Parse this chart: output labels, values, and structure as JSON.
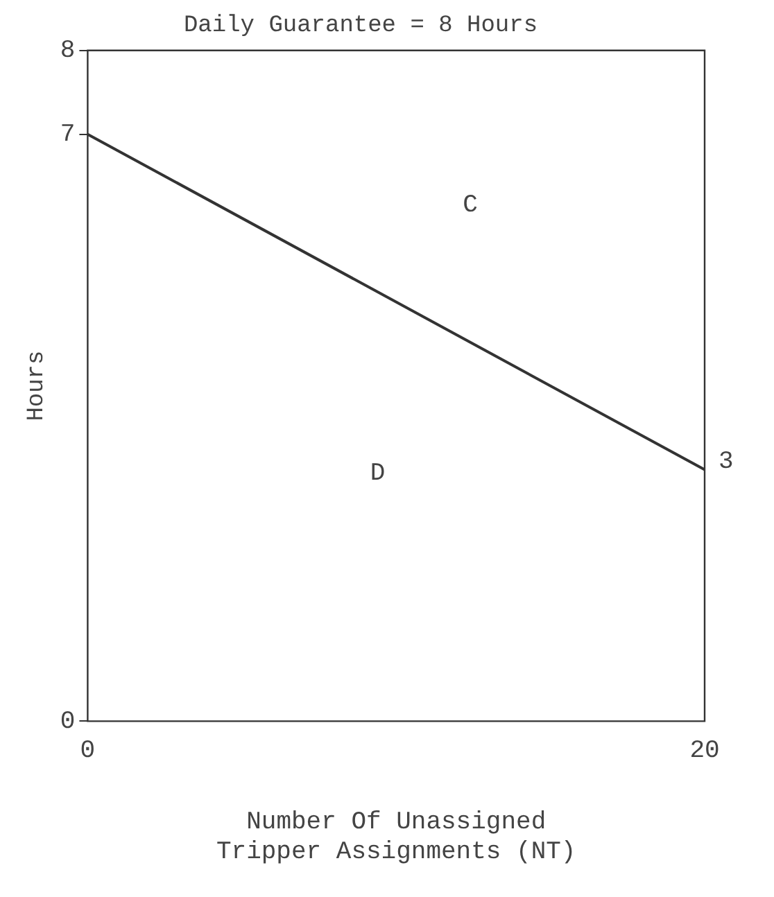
{
  "chart_data": {
    "type": "line",
    "title": "Daily Guarantee = 8 Hours",
    "xlabel": "Number Of Unassigned\nTripper Assignments (NT)",
    "ylabel": "Hours",
    "x": [
      0,
      20
    ],
    "series": [
      {
        "color": "#333333",
        "values": [
          7,
          3
        ],
        "value_labels": [
          null,
          "3"
        ]
      }
    ],
    "xlim": [
      0,
      20
    ],
    "xticks": [
      0,
      20
    ],
    "ylim": [
      0,
      8
    ],
    "yticks": [
      0,
      7,
      8
    ],
    "annotations": [
      "C",
      "D"
    ],
    "grid": false,
    "legend": false,
    "marker": "none",
    "line_style": "solid"
  }
}
